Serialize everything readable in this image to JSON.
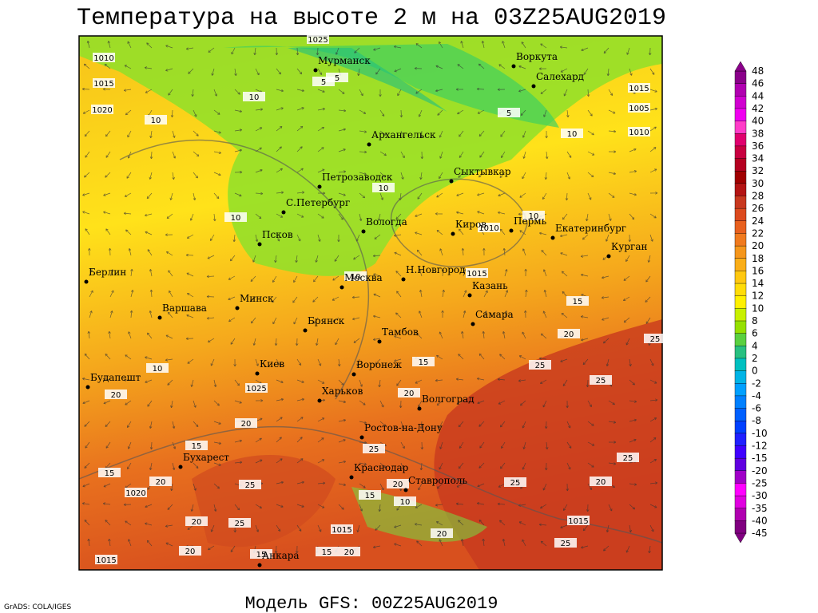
{
  "header": {
    "title": "Температура на высоте 2 м на 03Z25AUG2019"
  },
  "footer": {
    "model": "Модель GFS: 00Z25AUG2019",
    "credit": "GrADS: COLA/IGES"
  },
  "cities": [
    "Мурманск",
    "Воркута",
    "Салехард",
    "Архангельск",
    "Петрозаводск",
    "Сыктывкар",
    "С.Петербург",
    "Вологда",
    "Киров",
    "Пермь",
    "Екатеринбург",
    "Псков",
    "Курган",
    "Берлин",
    "Москва",
    "Н.Новгород",
    "Казань",
    "Минск",
    "Варшава",
    "Брянск",
    "Самара",
    "Тамбов",
    "Киев",
    "Воронеж",
    "Будапешт",
    "Харьков",
    "Волгоград",
    "Ростов-на-Дону",
    "Бухарест",
    "Краснодар",
    "Ставрополь",
    "Анкара"
  ],
  "contour_labels": [
    1010,
    1015,
    1020,
    10,
    1025,
    5,
    5,
    10,
    5,
    10,
    1015,
    1005,
    1010,
    10,
    10,
    1010,
    10,
    10,
    1015,
    15,
    20,
    25,
    15,
    25,
    10,
    1025,
    20,
    20,
    25,
    20,
    15,
    25,
    15,
    20,
    1020,
    25,
    25,
    20,
    25,
    20,
    15,
    10,
    20,
    25,
    1015,
    1015,
    20,
    20,
    15,
    15,
    20,
    1015,
    25
  ],
  "colorbar": {
    "ticks": [
      48,
      46,
      44,
      42,
      40,
      38,
      36,
      34,
      32,
      30,
      28,
      26,
      24,
      22,
      20,
      18,
      16,
      14,
      12,
      10,
      8,
      6,
      4,
      2,
      0,
      -2,
      -4,
      -6,
      -8,
      -10,
      -12,
      -15,
      -20,
      -25,
      -30,
      -35,
      -40,
      -45
    ],
    "colors": [
      "#8a008a",
      "#b000b0",
      "#d000d0",
      "#f000f0",
      "#ff3cc8",
      "#e0006e",
      "#c80040",
      "#b40020",
      "#a00000",
      "#b41414",
      "#c8381f",
      "#dc4a1e",
      "#e8601e",
      "#f07a1e",
      "#f5961c",
      "#faae18",
      "#ffc810",
      "#ffdc08",
      "#fff000",
      "#c8f000",
      "#96e000",
      "#5ad040",
      "#28c080",
      "#00c0c0",
      "#00b4e6",
      "#00a0ff",
      "#0080ff",
      "#0060ff",
      "#0040ff",
      "#2020ff",
      "#4000ff",
      "#6000e0",
      "#a000c8",
      "#ff00ff",
      "#e000e0",
      "#b000b0",
      "#800080"
    ]
  }
}
